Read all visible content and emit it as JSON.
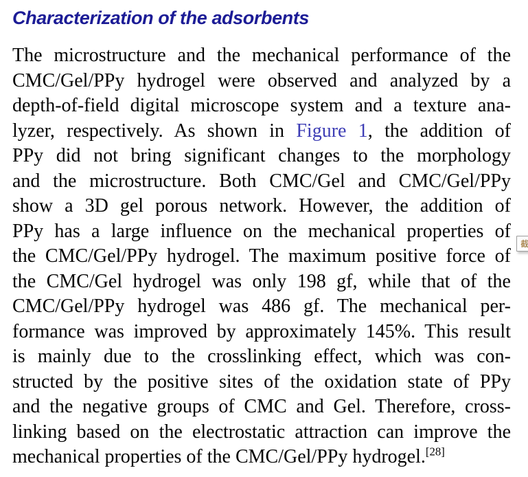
{
  "colors": {
    "page-bg": "#ffffff",
    "heading-color": "#1c1c96",
    "body-color": "#050505",
    "link-color": "#3d3db5"
  },
  "heading": {
    "text": "Characterization of the adsorbents"
  },
  "paragraph": {
    "lines": [
      {
        "segments": [
          {
            "t": "The microstructure and the mechanical performance of the"
          }
        ]
      },
      {
        "segments": [
          {
            "t": "CMC/Gel/PPy hydrogel were observed and analyzed by a"
          }
        ]
      },
      {
        "segments": [
          {
            "t": "depth-of-field digital microscope system and a texture ana-"
          }
        ]
      },
      {
        "segments": [
          {
            "t": "lyzer, respectively. As shown in "
          },
          {
            "t": "Figure 1",
            "style": "link"
          },
          {
            "t": ", the addition of"
          }
        ]
      },
      {
        "segments": [
          {
            "t": "PPy did not bring significant changes to the morphology"
          }
        ]
      },
      {
        "segments": [
          {
            "t": "and the microstructure. Both CMC/Gel and CMC/Gel/PPy"
          }
        ]
      },
      {
        "segments": [
          {
            "t": "show a 3D gel porous network. However, the addition of"
          }
        ]
      },
      {
        "segments": [
          {
            "t": "PPy has a large influence on the mechanical properties of"
          }
        ]
      },
      {
        "segments": [
          {
            "t": "the CMC/Gel/PPy hydrogel. The maximum positive force of"
          }
        ]
      },
      {
        "segments": [
          {
            "t": "the CMC/Gel hydrogel was only 198 gf, while that of the"
          }
        ]
      },
      {
        "segments": [
          {
            "t": "CMC/Gel/PPy hydrogel was 486 gf. The mechanical per-"
          }
        ]
      },
      {
        "segments": [
          {
            "t": "formance was improved by approximately 145%. This result"
          }
        ]
      },
      {
        "segments": [
          {
            "t": "is mainly due to the crosslinking effect, which was con-"
          }
        ]
      },
      {
        "segments": [
          {
            "t": "structed by the positive sites of the oxidation state of PPy"
          }
        ]
      },
      {
        "segments": [
          {
            "t": "and the negative groups of CMC and Gel. Therefore, cross-"
          }
        ]
      },
      {
        "segments": [
          {
            "t": "linking based on the electrostatic attraction can improve the"
          }
        ]
      },
      {
        "segments": [
          {
            "t": "mechanical properties of the CMC/Gel/PPy hydrogel."
          },
          {
            "t": "[28]",
            "style": "sup"
          }
        ],
        "last": true
      }
    ]
  },
  "side_tool": {
    "glyph": "截"
  }
}
